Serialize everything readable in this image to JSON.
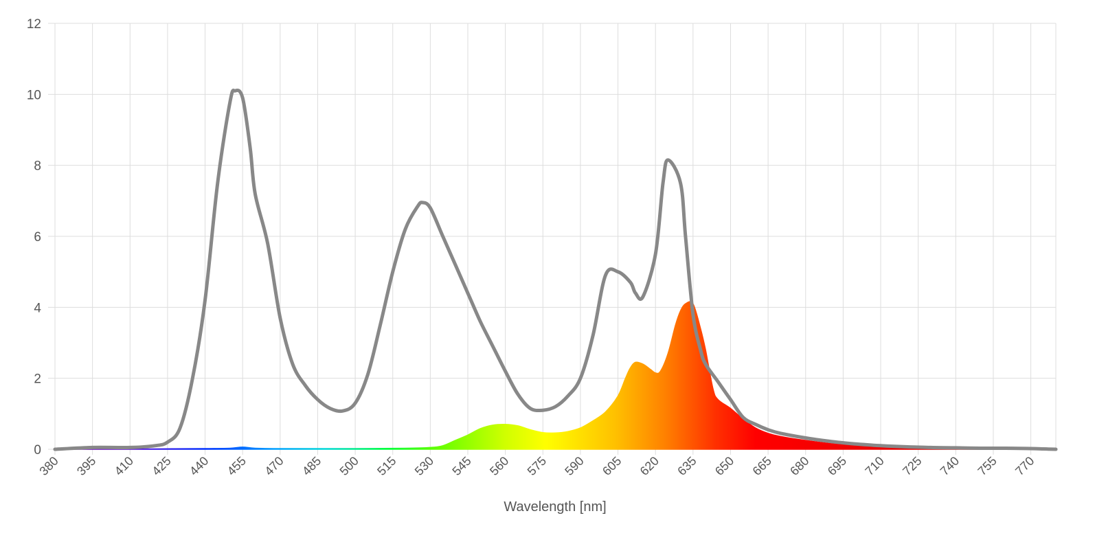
{
  "chart_data": {
    "type": "area",
    "title": "",
    "xlabel": "Wavelength [nm]",
    "ylabel": "",
    "xlim": [
      380,
      780
    ],
    "ylim": [
      0,
      12
    ],
    "grid": true,
    "legend": "none",
    "y_ticks": [
      "0",
      "2",
      "4",
      "6",
      "8",
      "10",
      "12"
    ],
    "x_ticks": [
      "380",
      "395",
      "410",
      "425",
      "440",
      "455",
      "470",
      "485",
      "500",
      "515",
      "530",
      "545",
      "560",
      "575",
      "590",
      "605",
      "620",
      "635",
      "650",
      "665",
      "680",
      "695",
      "710",
      "725",
      "740",
      "755",
      "770"
    ],
    "series": [
      {
        "color": "#888888",
        "style": "line",
        "x": [
          380,
          395,
          410,
          420,
          425,
          430,
          435,
          440,
          445,
          450,
          452,
          455,
          458,
          460,
          465,
          470,
          475,
          480,
          485,
          490,
          495,
          500,
          505,
          510,
          515,
          520,
          525,
          527,
          530,
          535,
          540,
          545,
          550,
          555,
          560,
          565,
          570,
          575,
          580,
          585,
          590,
          595,
          600,
          605,
          610,
          612,
          615,
          620,
          623,
          625,
          630,
          632,
          635,
          638,
          640,
          645,
          650,
          655,
          660,
          665,
          670,
          680,
          690,
          700,
          710,
          720,
          730,
          740,
          750,
          760,
          770,
          775,
          780
        ],
        "values": [
          0.0,
          0.05,
          0.05,
          0.1,
          0.2,
          0.6,
          2.0,
          4.2,
          7.5,
          9.8,
          10.1,
          9.9,
          8.5,
          7.2,
          5.8,
          3.7,
          2.4,
          1.8,
          1.4,
          1.15,
          1.08,
          1.3,
          2.1,
          3.5,
          5.0,
          6.2,
          6.85,
          6.95,
          6.8,
          6.0,
          5.2,
          4.4,
          3.6,
          2.9,
          2.2,
          1.55,
          1.15,
          1.1,
          1.2,
          1.5,
          2.0,
          3.2,
          4.9,
          5.0,
          4.7,
          4.4,
          4.3,
          5.5,
          7.5,
          8.15,
          7.5,
          6.0,
          3.8,
          2.8,
          2.4,
          1.9,
          1.4,
          0.9,
          0.7,
          0.55,
          0.45,
          0.32,
          0.22,
          0.15,
          0.1,
          0.07,
          0.05,
          0.04,
          0.03,
          0.03,
          0.02,
          0.01,
          0.0
        ]
      },
      {
        "color": "spectrum",
        "style": "area",
        "x": [
          380,
          400,
          420,
          440,
          450,
          455,
          460,
          470,
          480,
          500,
          520,
          530,
          535,
          540,
          545,
          550,
          555,
          560,
          565,
          570,
          575,
          580,
          585,
          590,
          595,
          600,
          605,
          608,
          610,
          612,
          615,
          618,
          620,
          622,
          625,
          628,
          630,
          632,
          635,
          638,
          640,
          643,
          645,
          650,
          655,
          660,
          665,
          670,
          680,
          690,
          700,
          720,
          740,
          760,
          780
        ],
        "values": [
          0.0,
          0.0,
          0.01,
          0.02,
          0.03,
          0.06,
          0.03,
          0.02,
          0.02,
          0.02,
          0.03,
          0.05,
          0.1,
          0.25,
          0.4,
          0.58,
          0.68,
          0.7,
          0.66,
          0.55,
          0.47,
          0.46,
          0.5,
          0.6,
          0.8,
          1.05,
          1.5,
          2.0,
          2.3,
          2.45,
          2.4,
          2.25,
          2.15,
          2.2,
          2.7,
          3.5,
          3.9,
          4.1,
          4.1,
          3.4,
          2.8,
          1.7,
          1.4,
          1.15,
          0.85,
          0.6,
          0.45,
          0.36,
          0.25,
          0.16,
          0.1,
          0.06,
          0.03,
          0.02,
          0.01
        ]
      }
    ]
  }
}
